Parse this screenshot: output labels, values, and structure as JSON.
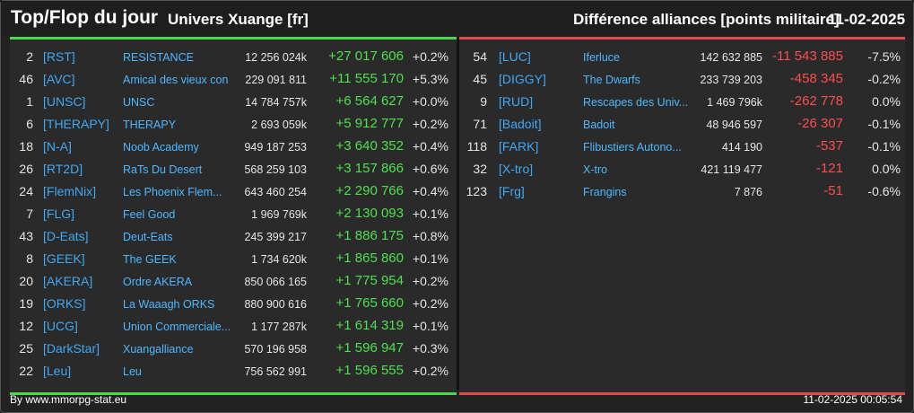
{
  "header": {
    "title": "Top/Flop du jour",
    "universe": "Univers Xuange [fr]",
    "metric": "Différence alliances [points militaire]",
    "date": "11-02-2025"
  },
  "top": [
    {
      "rank": "2",
      "tag": "[RST]",
      "name": "RESISTANCE",
      "points": "12 256 024k",
      "diff": "+27 017 606",
      "pct": "+0.2%"
    },
    {
      "rank": "46",
      "tag": "[AVC]",
      "name": "Amical des vieux con",
      "points": "229 091 811",
      "diff": "+11 555 170",
      "pct": "+5.3%"
    },
    {
      "rank": "1",
      "tag": "[UNSC]",
      "name": "UNSC",
      "points": "14 784 757k",
      "diff": "+6 564 627",
      "pct": "+0.0%"
    },
    {
      "rank": "6",
      "tag": "[THERAPY]",
      "name": "THERAPY",
      "points": "2 693 059k",
      "diff": "+5 912 777",
      "pct": "+0.2%"
    },
    {
      "rank": "18",
      "tag": "[N-A]",
      "name": "Noob Academy",
      "points": "949 187 253",
      "diff": "+3 640 352",
      "pct": "+0.4%"
    },
    {
      "rank": "26",
      "tag": "[RT2D]",
      "name": "RaTs Du Desert",
      "points": "568 259 103",
      "diff": "+3 157 866",
      "pct": "+0.6%"
    },
    {
      "rank": "24",
      "tag": "[FlemNix]",
      "name": "Les Phoenix Flem...",
      "points": "643 460 254",
      "diff": "+2 290 766",
      "pct": "+0.4%"
    },
    {
      "rank": "7",
      "tag": "[FLG]",
      "name": "Feel Good",
      "points": "1 969 769k",
      "diff": "+2 130 093",
      "pct": "+0.1%"
    },
    {
      "rank": "43",
      "tag": "[D-Eats]",
      "name": "Deut-Eats",
      "points": "245 399 217",
      "diff": "+1 886 175",
      "pct": "+0.8%"
    },
    {
      "rank": "8",
      "tag": "[GEEK]",
      "name": "The GEEK",
      "points": "1 734 620k",
      "diff": "+1 865 860",
      "pct": "+0.1%"
    },
    {
      "rank": "20",
      "tag": "[AKERA]",
      "name": "Ordre AKERA",
      "points": "850 066 165",
      "diff": "+1 775 954",
      "pct": "+0.2%"
    },
    {
      "rank": "19",
      "tag": "[ORKS]",
      "name": "La Waaagh ORKS",
      "points": "880 900 616",
      "diff": "+1 765 660",
      "pct": "+0.2%"
    },
    {
      "rank": "12",
      "tag": "[UCG]",
      "name": "Union Commerciale...",
      "points": "1 177 287k",
      "diff": "+1 614 319",
      "pct": "+0.1%"
    },
    {
      "rank": "25",
      "tag": "[DarkStar]",
      "name": "Xuangalliance",
      "points": "570 196 958",
      "diff": "+1 596 947",
      "pct": "+0.3%"
    },
    {
      "rank": "22",
      "tag": "[Leu]",
      "name": "Leu",
      "points": "756 562 991",
      "diff": "+1 596 555",
      "pct": "+0.2%"
    }
  ],
  "flop": [
    {
      "rank": "54",
      "tag": "[LUC]",
      "name": "Iferluce",
      "points": "142 632 885",
      "diff": "-11 543 885",
      "pct": "-7.5%"
    },
    {
      "rank": "45",
      "tag": "[DIGGY]",
      "name": "The Dwarfs",
      "points": "233 739 203",
      "diff": "-458 345",
      "pct": "-0.2%"
    },
    {
      "rank": "9",
      "tag": "[RUD]",
      "name": "Rescapes des Univ...",
      "points": "1 469 796k",
      "diff": "-262 778",
      "pct": "0.0%"
    },
    {
      "rank": "71",
      "tag": "[Badoit]",
      "name": "Badoit",
      "points": "48 946 597",
      "diff": "-26 307",
      "pct": "-0.1%"
    },
    {
      "rank": "118",
      "tag": "[FARK]",
      "name": "Flibustiers Autono...",
      "points": "414 190",
      "diff": "-537",
      "pct": "-0.1%"
    },
    {
      "rank": "32",
      "tag": "[X-tro]",
      "name": "X-tro",
      "points": "421 119 477",
      "diff": "-121",
      "pct": "0.0%"
    },
    {
      "rank": "123",
      "tag": "[Frg]",
      "name": "Frangins",
      "points": "7 876",
      "diff": "-51",
      "pct": "-0.6%"
    }
  ],
  "footer": {
    "source": "By www.mmorpg-stat.eu",
    "timestamp": "11-02-2025 00:05:54"
  },
  "colors": {
    "positive": "#4ee04e",
    "negative": "#ff4d4d",
    "tag": "#3fa9f5"
  }
}
